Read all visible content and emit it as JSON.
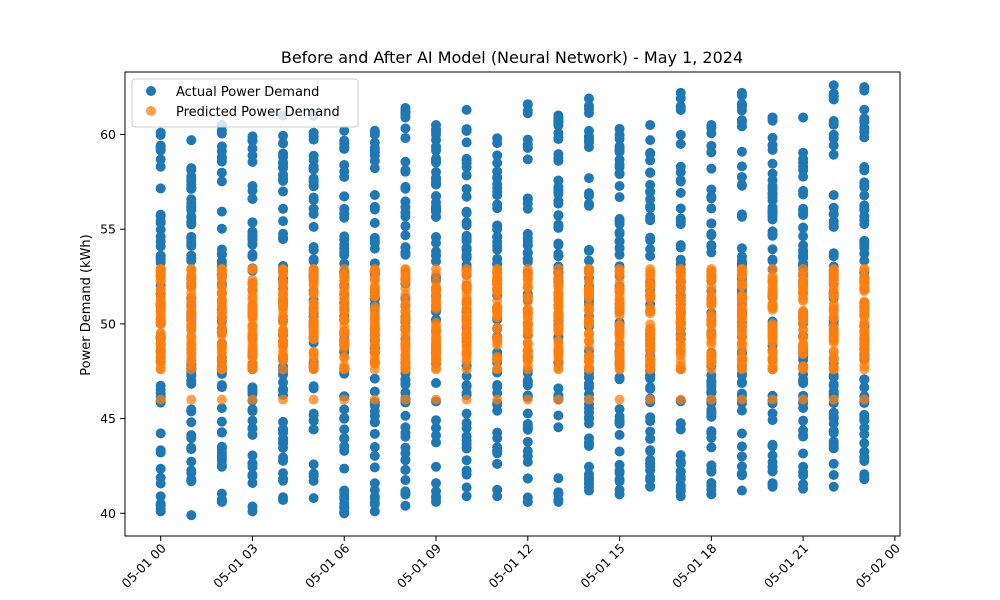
{
  "chart_data": {
    "type": "scatter",
    "title": "Before and After AI Model (Neural Network) - May 1, 2024",
    "xlabel": "",
    "ylabel": "Power Demand (kWh)",
    "x_tick_labels": [
      "05-01 00",
      "05-01 03",
      "05-01 06",
      "05-01 09",
      "05-01 12",
      "05-01 15",
      "05-01 18",
      "05-01 21",
      "05-02 00"
    ],
    "x_tick_hours": [
      0,
      3,
      6,
      9,
      12,
      15,
      18,
      21,
      24
    ],
    "y_ticks": [
      40,
      45,
      50,
      55,
      60
    ],
    "xlim": [
      "2024-04-30 22:50",
      "2024-05-02 00:10"
    ],
    "ylim": [
      38.8,
      63.3
    ],
    "x": [
      "2024-05-01 00:00",
      "2024-05-01 01:00",
      "2024-05-01 02:00",
      "2024-05-01 03:00",
      "2024-05-01 04:00",
      "2024-05-01 05:00",
      "2024-05-01 06:00",
      "2024-05-01 07:00",
      "2024-05-01 08:00",
      "2024-05-01 09:00",
      "2024-05-01 10:00",
      "2024-05-01 11:00",
      "2024-05-01 12:00",
      "2024-05-01 13:00",
      "2024-05-01 14:00",
      "2024-05-01 15:00",
      "2024-05-01 16:00",
      "2024-05-01 17:00",
      "2024-05-01 18:00",
      "2024-05-01 19:00",
      "2024-05-01 20:00",
      "2024-05-01 21:00",
      "2024-05-01 22:00",
      "2024-05-01 23:00"
    ],
    "legend_position": "upper-left",
    "grid": false,
    "series": [
      {
        "name": "Actual Power Demand",
        "color": "#1f77b4",
        "alpha": 1,
        "min": [
          40.1,
          39.9,
          40.6,
          40.1,
          40.7,
          40.8,
          40.0,
          40.1,
          40.4,
          40.6,
          40.9,
          40.9,
          40.6,
          40.6,
          41.2,
          41.0,
          41.4,
          40.9,
          41.0,
          41.2,
          41.4,
          41.3,
          41.4,
          41.8
        ],
        "max": [
          60.1,
          59.7,
          60.5,
          59.9,
          61.0,
          61.1,
          60.2,
          60.2,
          61.4,
          60.5,
          61.3,
          59.8,
          61.6,
          61.0,
          61.9,
          60.3,
          60.5,
          62.2,
          60.5,
          62.2,
          60.9,
          60.9,
          62.6,
          62.5
        ]
      },
      {
        "name": "Predicted Power Demand",
        "color": "#ff7f0e",
        "alpha": 0.75,
        "band": [
          47.6,
          52.9
        ],
        "outlier": 46.0
      }
    ]
  }
}
